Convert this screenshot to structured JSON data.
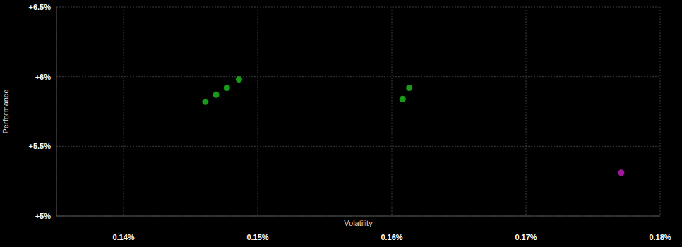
{
  "chart_data": {
    "type": "scatter",
    "x_label": "Volatility",
    "y_label": "Performance",
    "x": [
      0.1461,
      0.1469,
      0.1477,
      0.1486,
      0.1613,
      0.1608,
      0.1771
    ],
    "values": [
      5.82,
      5.87,
      5.92,
      5.98,
      5.92,
      5.84,
      5.31
    ],
    "colors": [
      "#1a9a1a",
      "#1a9a1a",
      "#1a9a1a",
      "#1a9a1a",
      "#1a9a1a",
      "#1a9a1a",
      "#a0189b"
    ],
    "marker": "circle",
    "xlim": [
      0.135,
      0.18
    ],
    "xticks": [
      {
        "value": 0.14,
        "label": "0.14%"
      },
      {
        "value": 0.15,
        "label": "0.15%"
      },
      {
        "value": 0.16,
        "label": "0.16%"
      },
      {
        "value": 0.17,
        "label": "0.17%"
      },
      {
        "value": 0.18,
        "label": "0.18%"
      }
    ],
    "ylim": [
      5,
      6.5
    ],
    "yticks": [
      {
        "value": 5,
        "label": "+5%"
      },
      {
        "value": 5.5,
        "label": "+5.5%"
      },
      {
        "value": 6,
        "label": "+6%"
      },
      {
        "value": 6.5,
        "label": "+6.5%"
      }
    ],
    "grid": true
  }
}
